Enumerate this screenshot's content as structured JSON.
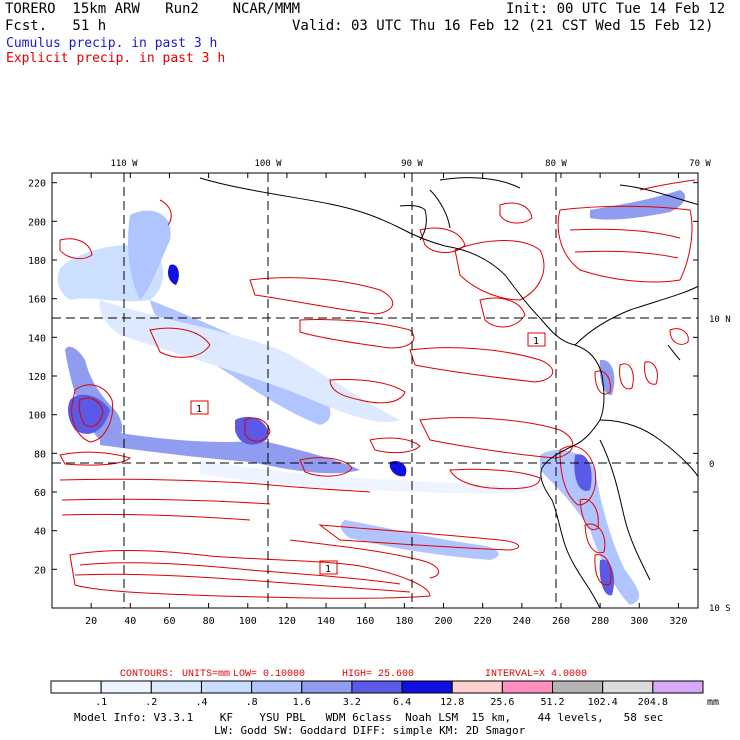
{
  "header": {
    "model": "TORERO  15km ARW   Run2    NCAR/MMM",
    "init": "Init: 00 UTC Tue 14 Feb 12",
    "fcst": "Fcst.   51 h",
    "valid": "Valid: 03 UTC Thu 16 Feb 12 (21 CST Wed 15 Feb 12)"
  },
  "legend": {
    "cumulus": "Cumulus precip. in past 3 h",
    "explicit": "Explicit precip. in past 3 h"
  },
  "colors": {
    "cumulus": "#1a1acc",
    "explicit": "#e00000",
    "grid": "#000000",
    "coast": "#000000"
  },
  "map": {
    "lon_labels": [
      "110 W",
      "100 W",
      "90 W",
      "80 W",
      "70 W"
    ],
    "lat_labels": [
      "10 N",
      "0",
      "10 S"
    ],
    "x_ticks": [
      "20",
      "40",
      "60",
      "80",
      "100",
      "120",
      "140",
      "160",
      "180",
      "200",
      "220",
      "240",
      "260",
      "280",
      "300",
      "320"
    ],
    "y_ticks": [
      "220",
      "200",
      "180",
      "160",
      "140",
      "120",
      "100",
      "80",
      "60",
      "40",
      "20"
    ],
    "high_marker": "1"
  },
  "contour_info": {
    "contours": "CONTOURS:",
    "units": "UNITS=mm",
    "low": "LOW= 0.10000",
    "high": "HIGH=  25.600",
    "interval": "INTERVAL=X  4.0000"
  },
  "colorbar": {
    "labels": [
      ".1",
      ".2",
      ".4",
      ".8",
      "1.6",
      "3.2",
      "6.4",
      "12.8",
      "25.6",
      "51.2",
      "102.4",
      "204.8"
    ],
    "unit": "mm",
    "colors": [
      "#ffffff",
      "#eef4ff",
      "#dde9ff",
      "#c8dcff",
      "#b0c4ff",
      "#8f9cf0",
      "#5a5ae6",
      "#1010e0",
      "#ffd0d0",
      "#ff90c0",
      "#b4b4b4",
      "#dcdcdc",
      "#d8a8f8"
    ]
  },
  "model_info": {
    "line1": "Model Info: V3.3.1    KF    YSU PBL   WDM 6class  Noah LSM  15 km,    44 levels,   58 sec",
    "line2": "LW: Godd SW: Goddard DIFF: simple KM: 2D Smagor"
  }
}
